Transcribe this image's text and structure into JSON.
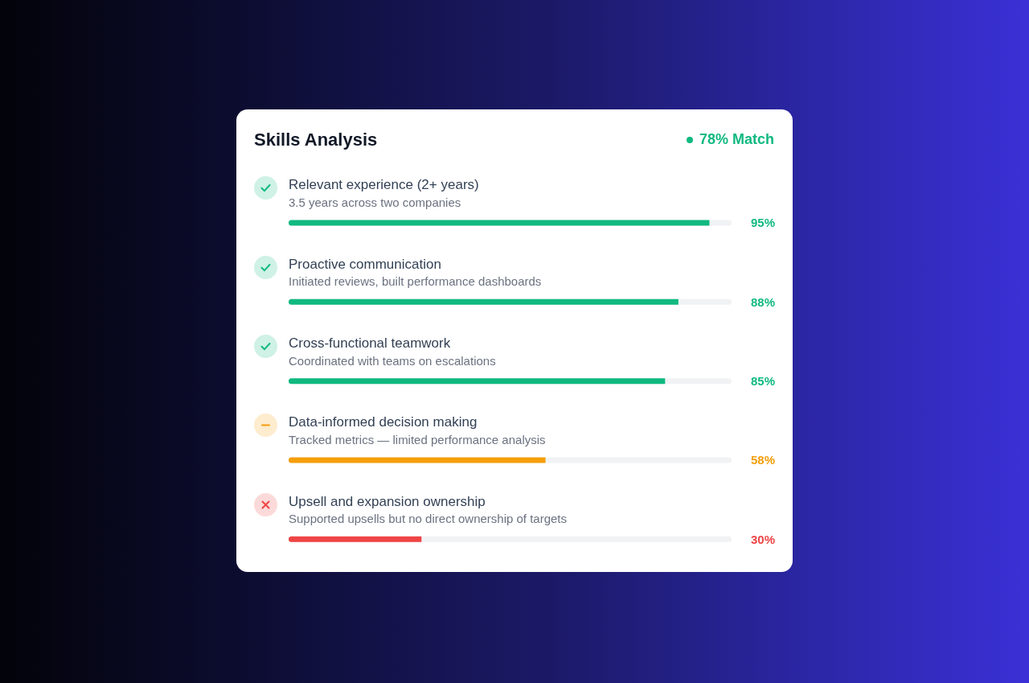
{
  "chart_data": {
    "type": "bar",
    "orientation": "horizontal",
    "title": "Skills Analysis",
    "subtitle": "78% Match",
    "categories": [
      "Relevant experience (2+ years)",
      "Proactive communication",
      "Cross-functional teamwork",
      "Data-informed decision making",
      "Upsell and expansion ownership"
    ],
    "values": [
      95,
      88,
      85,
      58,
      30
    ],
    "colors": [
      "#10b981",
      "#10b981",
      "#10b981",
      "#f59e0b",
      "#ef4444"
    ],
    "value_labels": [
      "95%",
      "88%",
      "85%",
      "58%",
      "30%"
    ],
    "xlim": [
      0,
      100
    ],
    "tick_labels": "y",
    "annotations": [
      "3.5 years across two companies",
      "Initiated reviews, built performance dashboards",
      "Coordinated with teams on escalations",
      "Tracked metrics — limited performance analysis",
      "Supported upsells but no direct ownership of targets"
    ]
  }
}
